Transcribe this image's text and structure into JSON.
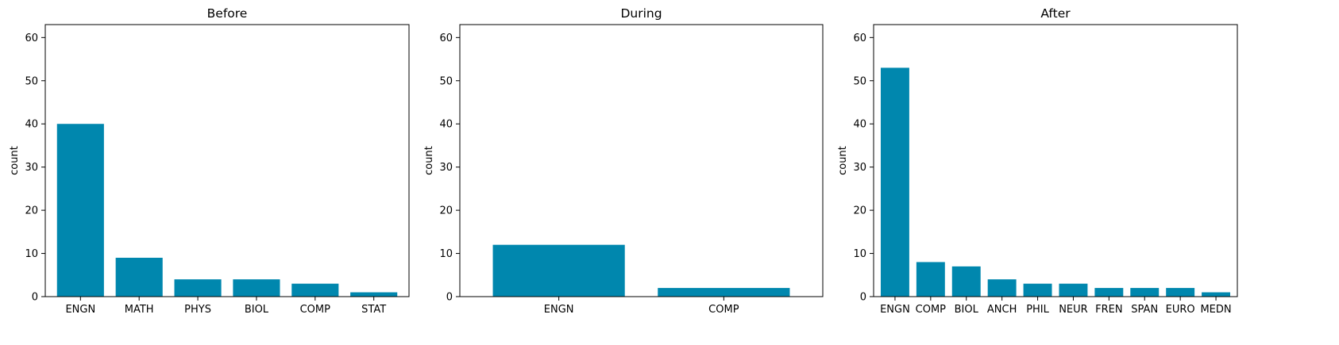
{
  "figure": {
    "bar_color": "#0087AE"
  },
  "chart_data": [
    {
      "type": "bar",
      "title": "Before",
      "xlabel": "",
      "ylabel": "count",
      "ylim": [
        0,
        63
      ],
      "yticks": [
        0,
        10,
        20,
        30,
        40,
        50,
        60
      ],
      "grid": false,
      "categories": [
        "ENGN",
        "MATH",
        "PHYS",
        "BIOL",
        "COMP",
        "STAT"
      ],
      "values": [
        40,
        9,
        4,
        4,
        3,
        1
      ]
    },
    {
      "type": "bar",
      "title": "During",
      "xlabel": "",
      "ylabel": "count",
      "ylim": [
        0,
        63
      ],
      "yticks": [
        0,
        10,
        20,
        30,
        40,
        50,
        60
      ],
      "grid": false,
      "categories": [
        "ENGN",
        "COMP"
      ],
      "values": [
        12,
        2
      ]
    },
    {
      "type": "bar",
      "title": "After",
      "xlabel": "",
      "ylabel": "count",
      "ylim": [
        0,
        63
      ],
      "yticks": [
        0,
        10,
        20,
        30,
        40,
        50,
        60
      ],
      "grid": false,
      "categories": [
        "ENGN",
        "COMP",
        "BIOL",
        "ANCH",
        "PHIL",
        "NEUR",
        "FREN",
        "SPAN",
        "EURO",
        "MEDN"
      ],
      "values": [
        53,
        8,
        7,
        4,
        3,
        3,
        2,
        2,
        2,
        1
      ]
    }
  ]
}
